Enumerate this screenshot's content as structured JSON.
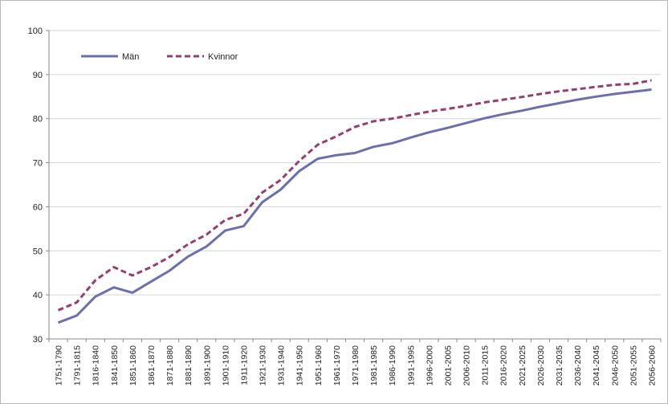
{
  "chart_data": {
    "type": "line",
    "title": "",
    "xlabel": "",
    "ylabel": "",
    "ylim": [
      30,
      100
    ],
    "yticks": [
      30,
      40,
      50,
      60,
      70,
      80,
      90,
      100
    ],
    "grid": "horizontal",
    "legend": "top-left",
    "categories": [
      "1751-1790",
      "1791-1815",
      "1816-1840",
      "1841-1850",
      "1851-1860",
      "1861-1870",
      "1871-1880",
      "1881-1890",
      "1891-1900",
      "1901-1910",
      "1911-1920",
      "1921-1930",
      "1931-1940",
      "1941-1950",
      "1951-1960",
      "1961-1970",
      "1971-1980",
      "1981-1985",
      "1986-1990",
      "1991-1995",
      "1996-2000",
      "2001-2005",
      "2006-2010",
      "2011-2015",
      "2016-2020",
      "2021-2025",
      "2026-2030",
      "2031-2035",
      "2036-2040",
      "2041-2045",
      "2046-2050",
      "2051-2055",
      "2056-2060"
    ],
    "series": [
      {
        "name": "Män",
        "color": "#6b6fad",
        "dash": "solid",
        "values": [
          33.7,
          35.3,
          39.6,
          41.7,
          40.5,
          43.0,
          45.5,
          48.7,
          51.0,
          54.6,
          55.6,
          61.0,
          63.9,
          68.1,
          70.9,
          71.7,
          72.2,
          73.6,
          74.4,
          75.7,
          76.9,
          77.9,
          79.0,
          80.1,
          81.0,
          81.8,
          82.7,
          83.5,
          84.3,
          85.0,
          85.6,
          86.1,
          86.6
        ]
      },
      {
        "name": "Kvinnor",
        "color": "#963f6f",
        "dash": "dashed",
        "values": [
          36.5,
          38.3,
          43.3,
          46.3,
          44.4,
          46.3,
          48.6,
          51.5,
          53.7,
          57.0,
          58.4,
          63.2,
          66.1,
          70.4,
          74.1,
          76.0,
          78.1,
          79.4,
          80.0,
          80.8,
          81.6,
          82.2,
          82.9,
          83.7,
          84.3,
          84.9,
          85.6,
          86.2,
          86.7,
          87.2,
          87.7,
          87.9,
          88.7
        ]
      }
    ]
  }
}
